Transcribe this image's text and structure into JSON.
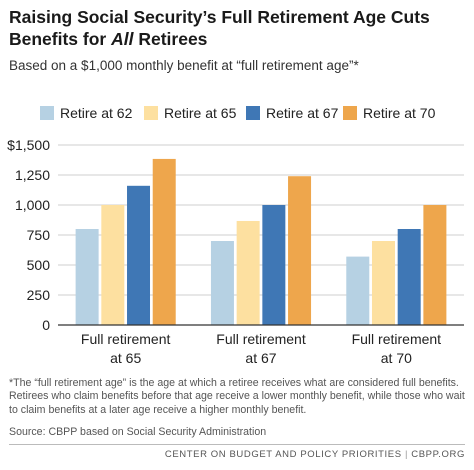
{
  "header": {
    "title_line1": "Raising Social Security’s Full Retirement Age Cuts",
    "title_line2_prefix": "Benefits for ",
    "title_line2_emph": "All",
    "title_line2_suffix": " Retirees",
    "subtitle": "Based on a $1,000 monthly benefit at “full retirement age”*"
  },
  "chart_data": {
    "type": "bar",
    "title": "Raising Social Security’s Full Retirement Age Cuts Benefits for All Retirees",
    "subtitle": "Based on a $1,000 monthly benefit at “full retirement age”*",
    "xlabel": "",
    "ylabel": "",
    "categories": [
      "Full retirement at 65",
      "Full retirement at 67",
      "Full retirement at 70"
    ],
    "category_lines": [
      [
        "Full retirement",
        "at 65"
      ],
      [
        "Full retirement",
        "at 67"
      ],
      [
        "Full retirement",
        "at 70"
      ]
    ],
    "series": [
      {
        "name": "Retire at 62",
        "color": "#b6d1e3",
        "values": [
          800,
          700,
          570
        ]
      },
      {
        "name": "Retire at 65",
        "color": "#fde0a0",
        "values": [
          1000,
          867,
          700
        ]
      },
      {
        "name": "Retire at 67",
        "color": "#3f77b5",
        "values": [
          1160,
          1000,
          800
        ]
      },
      {
        "name": "Retire at 70",
        "color": "#eea64c",
        "values": [
          1384,
          1240,
          1000
        ]
      }
    ],
    "ylim": [
      0,
      1500
    ],
    "yticks": [
      0,
      250,
      500,
      750,
      1000,
      1250,
      1500
    ],
    "ytick_labels": [
      "0",
      "250",
      "500",
      "750",
      "1,000",
      "1,250",
      "$1,500"
    ],
    "grid": true,
    "legend_position": "top"
  },
  "notes": {
    "footnote": "*The “full retirement age” is the age at which a retiree receives what are considered full benefits. Retirees who claim benefits before that age receive a lower monthly benefit, while those who wait to claim benefits at a later age receive a higher monthly benefit.",
    "source": "Source: CBPP based on Social Security Administration"
  },
  "footer": {
    "org": "CENTER ON BUDGET AND POLICY PRIORITIES",
    "separator": "|",
    "site": "CBPP.ORG"
  },
  "colors": {
    "gridline": "#cfcfcf",
    "axis": "#333333",
    "text": "#222222"
  }
}
